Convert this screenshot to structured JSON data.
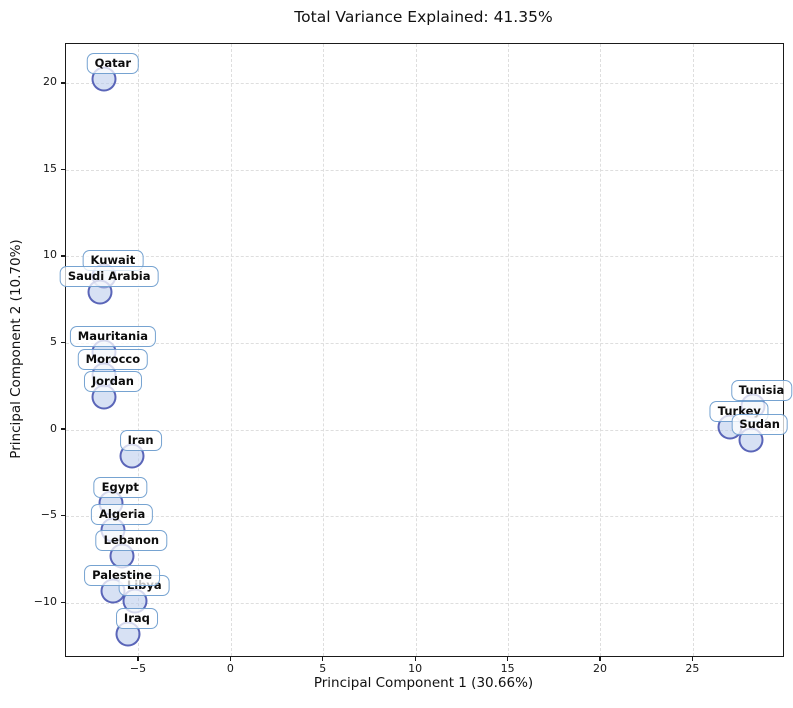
{
  "chart_data": {
    "type": "scatter",
    "title": "Total Variance Explained: 41.35%",
    "xlabel": "Principal Component 1 (30.66%)",
    "ylabel": "Principal Component 2 (10.70%)",
    "xlim": [
      -8.95,
      29.85
    ],
    "ylim": [
      -13.05,
      22.3
    ],
    "xticks": [
      -5,
      0,
      5,
      10,
      15,
      20,
      25
    ],
    "xtick_labels": [
      "−5",
      "0",
      "5",
      "10",
      "15",
      "20",
      "25"
    ],
    "yticks": [
      -10,
      -5,
      0,
      5,
      10,
      15,
      20
    ],
    "ytick_labels": [
      "−10",
      "−5",
      "0",
      "5",
      "10",
      "15",
      "20"
    ],
    "grid": true,
    "legend": "none",
    "points": [
      {
        "label": "Qatar",
        "x": -6.9,
        "y": 20.3
      },
      {
        "label": "Kuwait",
        "x": -6.9,
        "y": 8.9
      },
      {
        "label": "Saudi Arabia",
        "x": -7.1,
        "y": 8.0
      },
      {
        "label": "Mauritania",
        "x": -6.9,
        "y": 4.5
      },
      {
        "label": "Morocco",
        "x": -6.9,
        "y": 3.2
      },
      {
        "label": "Jordan",
        "x": -6.9,
        "y": 1.9
      },
      {
        "label": "Iran",
        "x": -5.4,
        "y": -1.5
      },
      {
        "label": "Egypt",
        "x": -6.5,
        "y": -4.2
      },
      {
        "label": "Algeria",
        "x": -6.4,
        "y": -5.8
      },
      {
        "label": "Lebanon",
        "x": -5.9,
        "y": -7.3
      },
      {
        "label": "Libya",
        "x": -5.2,
        "y": -9.9
      },
      {
        "label": "Palestine",
        "x": -6.4,
        "y": -9.3
      },
      {
        "label": "Iraq",
        "x": -5.6,
        "y": -11.8
      },
      {
        "label": "Tunisia",
        "x": 28.2,
        "y": 1.4
      },
      {
        "label": "Turkey",
        "x": 27.0,
        "y": 0.2
      },
      {
        "label": "Sudan",
        "x": 28.1,
        "y": -0.6
      }
    ],
    "colors": {
      "marker_fill": "#b7c8eb",
      "marker_fill_alpha": 0.55,
      "marker_edge": "#3743a8",
      "marker_edge_alpha": 0.78,
      "label_border": "#5e93c9",
      "label_background": "#ffffff",
      "label_background_alpha": 0.75,
      "grid": "#dedede",
      "spine": "#1a1a1a"
    }
  }
}
